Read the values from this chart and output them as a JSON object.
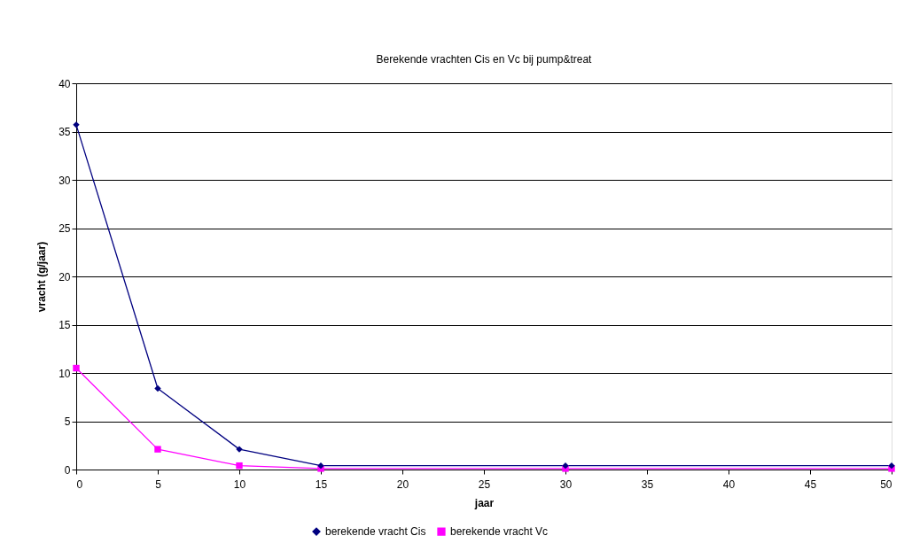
{
  "chart_data": {
    "type": "line",
    "title": "Berekende vrachten Cis en Vc bij pump&treat",
    "xlabel": "jaar",
    "ylabel": "vracht (g/jaar)",
    "x": [
      0,
      5,
      10,
      15,
      30,
      50
    ],
    "series": [
      {
        "name": "berekende vracht Cis",
        "color": "#000080",
        "marker": "diamond",
        "values": [
          35.7,
          8.4,
          2.1,
          0.4,
          0.4,
          0.4
        ]
      },
      {
        "name": "berekende vracht Vc",
        "color": "#ff00ff",
        "marker": "square",
        "values": [
          10.5,
          2.1,
          0.4,
          0.1,
          0.1,
          0.1
        ]
      }
    ],
    "xlim": [
      0,
      50
    ],
    "xticks": [
      0,
      5,
      10,
      15,
      20,
      25,
      30,
      35,
      40,
      45,
      50
    ],
    "ylim": [
      0,
      40
    ],
    "yticks": [
      0,
      5,
      10,
      15,
      20,
      25,
      30,
      35,
      40
    ],
    "grid": "y",
    "legend": "bottom",
    "line_style": "solid"
  }
}
